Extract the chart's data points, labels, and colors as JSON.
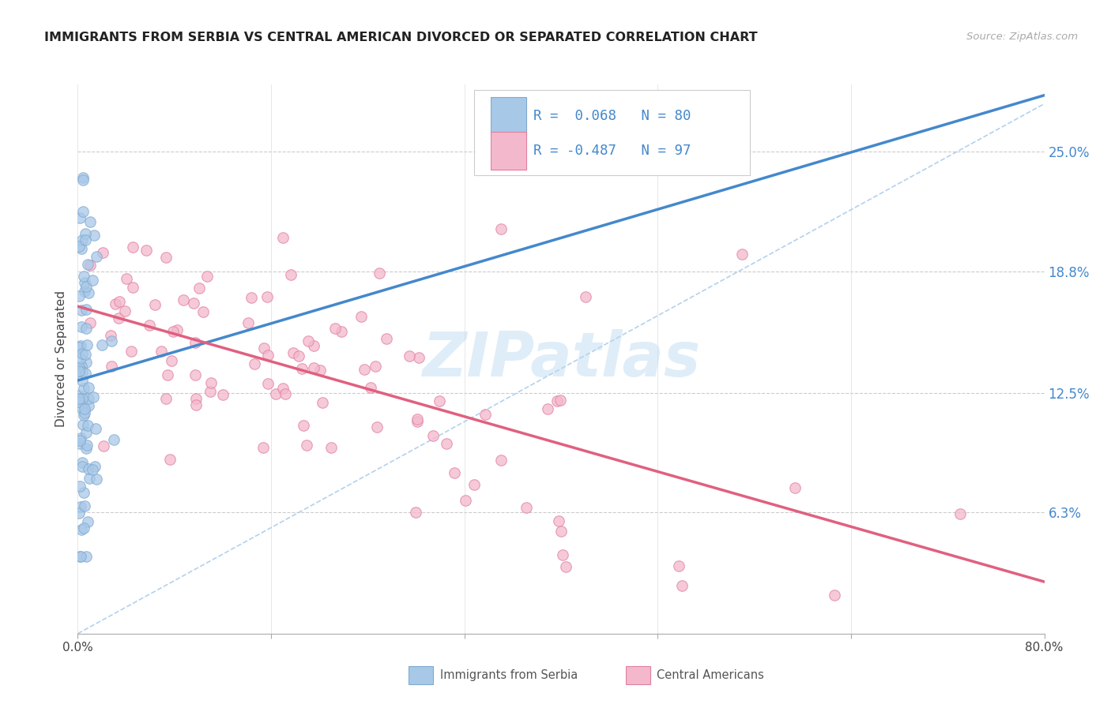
{
  "title": "IMMIGRANTS FROM SERBIA VS CENTRAL AMERICAN DIVORCED OR SEPARATED CORRELATION CHART",
  "source": "Source: ZipAtlas.com",
  "ylabel": "Divorced or Separated",
  "xlim": [
    0.0,
    0.8
  ],
  "ylim": [
    0.0,
    0.285
  ],
  "yticks": [
    0.063,
    0.125,
    0.188,
    0.25
  ],
  "ytick_labels": [
    "6.3%",
    "12.5%",
    "18.8%",
    "25.0%"
  ],
  "xticks": [
    0.0,
    0.16,
    0.32,
    0.48,
    0.64,
    0.8
  ],
  "xtick_labels": [
    "0.0%",
    "",
    "",
    "",
    "",
    "80.0%"
  ],
  "serbia_color": "#a8c8e8",
  "serbia_edge": "#80aad0",
  "central_color": "#f4b8cc",
  "central_edge": "#e080a0",
  "serbia_line_color": "#4488cc",
  "central_line_color": "#e06080",
  "trendline_dash_color": "#aaccee",
  "watermark": "ZIPatlas",
  "legend_R_serbia": "R =  0.068",
  "legend_N_serbia": "N = 80",
  "legend_R_central": "R = -0.487",
  "legend_N_central": "N = 97"
}
